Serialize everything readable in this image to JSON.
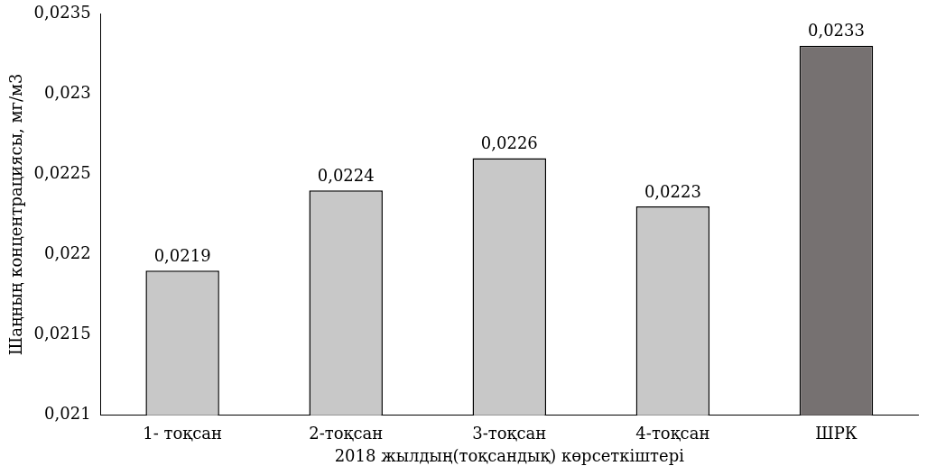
{
  "chart_data": {
    "type": "bar",
    "xlabel": "2018 жылдың(тоқсандық) көрсеткіштері",
    "ylabel": "Шаңның концентрациясы, мг/м3",
    "categories": [
      "1- тоқсан",
      "2-тоқсан",
      "3-тоқсан",
      "4-тоқсан",
      "ШРК"
    ],
    "values": [
      0.0219,
      0.0224,
      0.0226,
      0.0223,
      0.0233
    ],
    "value_labels": [
      "0,0219",
      "0,0224",
      "0,0226",
      "0,0223",
      "0,0233"
    ],
    "colors": [
      "#c8c8c8",
      "#c8c8c8",
      "#c8c8c8",
      "#c8c8c8",
      "#767171"
    ],
    "ylim": [
      0.021,
      0.0235
    ],
    "yticks": [
      {
        "value": 0.021,
        "label": "0,021"
      },
      {
        "value": 0.0215,
        "label": "0,0215"
      },
      {
        "value": 0.022,
        "label": "0,022"
      },
      {
        "value": 0.0225,
        "label": "0,0225"
      },
      {
        "value": 0.023,
        "label": "0,023"
      },
      {
        "value": 0.0235,
        "label": "0,0235"
      }
    ],
    "grid": false,
    "legend": false
  }
}
